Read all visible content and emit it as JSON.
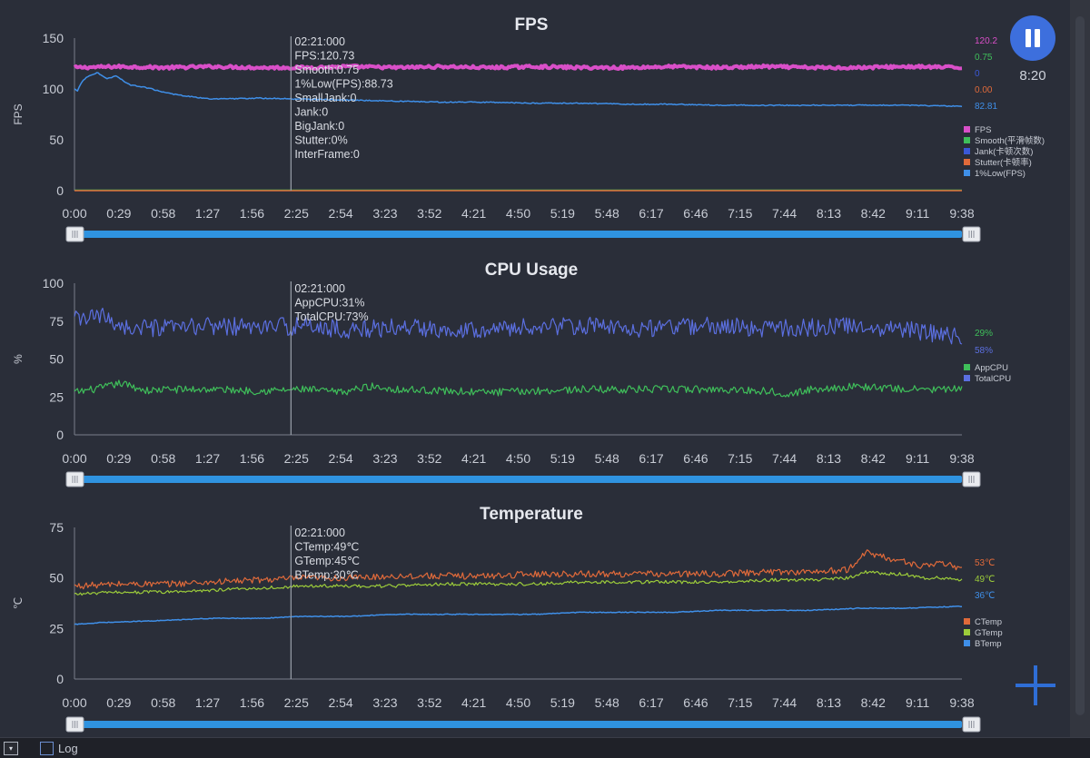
{
  "status": {
    "timer": "8:20",
    "log_label": "Log",
    "dropdown_glyph": "▾"
  },
  "icons": {
    "pause": "pause-icon",
    "add": "plus-icon"
  },
  "colors": {
    "background": "#2a2e39",
    "axis": "#7a7f8c",
    "cursor": "#9aa0ab",
    "slider": "#2f93e0",
    "pause": "#3d6fdd"
  },
  "chart_data": [
    {
      "type": "line",
      "title": "FPS",
      "ylabel": "FPS",
      "ylim": [
        0,
        150
      ],
      "yticks": [
        "0",
        "50",
        "100",
        "150"
      ],
      "x_ticks": [
        "0:00",
        "0:29",
        "0:58",
        "1:27",
        "1:56",
        "2:25",
        "2:54",
        "3:23",
        "3:52",
        "4:21",
        "4:50",
        "5:19",
        "5:48",
        "6:17",
        "6:46",
        "7:15",
        "7:44",
        "8:13",
        "8:42",
        "9:11",
        "9:38"
      ],
      "cursor_time": "2:21",
      "tooltip": [
        "02:21:000",
        "FPS:120.73",
        "Smooth:0.75",
        "1%Low(FPS):88.73",
        "SmallJank:0",
        "Jank:0",
        "BigJank:0",
        "Stutter:0%",
        "InterFrame:0"
      ],
      "series": [
        {
          "name": "FPS",
          "color": "#d94fc8",
          "width": 4,
          "x": [
            0,
            0.5,
            1,
            1.5,
            2,
            2.5,
            3,
            3.5,
            4,
            4.5,
            5,
            5.5,
            6,
            6.5,
            7,
            7.5,
            8,
            8.5,
            9,
            9.633
          ],
          "y": [
            121,
            122,
            121,
            122,
            121,
            121,
            122,
            121,
            122,
            121,
            122,
            121,
            121,
            122,
            121,
            122,
            121,
            121,
            122,
            121
          ],
          "noise": 1.4
        },
        {
          "name": "Smooth(平滑帧数)",
          "color": "#3fbf5a",
          "width": 1,
          "x": [
            0,
            9.633
          ],
          "y": [
            0.75,
            0.75
          ],
          "noise": 0
        },
        {
          "name": "Jank(卡顿次数)",
          "color": "#3a58d6",
          "width": 1,
          "x": [
            0,
            9.633
          ],
          "y": [
            0,
            0
          ],
          "noise": 0
        },
        {
          "name": "Stutter(卡顿率)",
          "color": "#e06a3a",
          "width": 1.5,
          "x": [
            0,
            9.633
          ],
          "y": [
            0,
            0
          ],
          "noise": 0
        },
        {
          "name": "1%Low(FPS)",
          "color": "#3f8fe8",
          "width": 1.5,
          "x": [
            0,
            0.03,
            0.08,
            0.15,
            0.25,
            0.35,
            0.45,
            0.6,
            0.8,
            1.0,
            1.2,
            1.5,
            2.0,
            2.5,
            3.0,
            3.5,
            4.0,
            4.5,
            5.0,
            5.5,
            6.0,
            6.5,
            7.0,
            7.5,
            8.0,
            8.5,
            9.0,
            9.633
          ],
          "y": [
            100,
            98,
            107,
            113,
            116,
            110,
            113,
            104,
            101,
            96,
            93,
            90,
            91,
            90,
            89,
            88,
            87,
            87,
            86,
            86,
            85,
            85,
            84,
            84,
            84,
            84,
            84,
            83
          ],
          "noise": 0.5
        }
      ],
      "legend_values": [
        {
          "text": "120.2",
          "color": "#d94fc8"
        },
        {
          "text": "0.75",
          "color": "#3fbf5a"
        },
        {
          "text": "0",
          "color": "#3a58d6"
        },
        {
          "text": "0.00",
          "color": "#e06a3a"
        },
        {
          "text": "82.81",
          "color": "#3f8fe8"
        }
      ],
      "legend": "right"
    },
    {
      "type": "line",
      "title": "CPU Usage",
      "ylabel": "%",
      "ylim": [
        0,
        100
      ],
      "yticks": [
        "0",
        "25",
        "50",
        "75",
        "100"
      ],
      "x_ticks": [
        "0:00",
        "0:29",
        "0:58",
        "1:27",
        "1:56",
        "2:25",
        "2:54",
        "3:23",
        "3:52",
        "4:21",
        "4:50",
        "5:19",
        "5:48",
        "6:17",
        "6:46",
        "7:15",
        "7:44",
        "8:13",
        "8:42",
        "9:11",
        "9:38"
      ],
      "cursor_time": "2:21",
      "tooltip": [
        "02:21:000",
        "AppCPU:31%",
        "TotalCPU:73%"
      ],
      "series": [
        {
          "name": "AppCPU",
          "color": "#3fbf5a",
          "width": 1.2,
          "x": [
            0,
            0.3,
            0.5,
            0.8,
            1.0,
            1.5,
            2.0,
            2.5,
            2.9,
            3.2,
            3.5,
            4.0,
            4.5,
            5.0,
            5.5,
            6.0,
            6.5,
            7.0,
            7.5,
            7.8,
            8.0,
            8.5,
            9.0,
            9.633
          ],
          "y": [
            28,
            31,
            34,
            29,
            30,
            30,
            29,
            30,
            28,
            32,
            30,
            29,
            28,
            29,
            30,
            30,
            30,
            30,
            29,
            27,
            30,
            32,
            30,
            30
          ],
          "noise": 2.5
        },
        {
          "name": "TotalCPU",
          "color": "#5b6fe0",
          "width": 1.2,
          "x": [
            0,
            0.3,
            0.6,
            1.0,
            1.5,
            2.0,
            2.5,
            3.0,
            3.5,
            4.0,
            4.5,
            5.0,
            5.5,
            6.0,
            6.5,
            7.0,
            7.5,
            8.0,
            8.5,
            9.0,
            9.633
          ],
          "y": [
            76,
            78,
            70,
            70,
            72,
            71,
            72,
            69,
            71,
            70,
            70,
            71,
            72,
            70,
            71,
            72,
            70,
            71,
            72,
            70,
            64
          ],
          "noise": 6
        }
      ],
      "legend_values": [
        {
          "text": "29%",
          "color": "#3fbf5a"
        },
        {
          "text": "58%",
          "color": "#5b6fe0"
        }
      ],
      "legend": "right"
    },
    {
      "type": "line",
      "title": "Temperature",
      "ylabel": "℃",
      "ylim": [
        0,
        75
      ],
      "yticks": [
        "0",
        "25",
        "50",
        "75"
      ],
      "x_ticks": [
        "0:00",
        "0:29",
        "0:58",
        "1:27",
        "1:56",
        "2:25",
        "2:54",
        "3:23",
        "3:52",
        "4:21",
        "4:50",
        "5:19",
        "5:48",
        "6:17",
        "6:46",
        "7:15",
        "7:44",
        "8:13",
        "8:42",
        "9:11",
        "9:38"
      ],
      "cursor_time": "2:21",
      "tooltip": [
        "02:21:000",
        "CTemp:49℃",
        "GTemp:45℃",
        "BTemp:30℃"
      ],
      "series": [
        {
          "name": "CTemp",
          "color": "#e06a3a",
          "width": 1.2,
          "x": [
            0,
            0.5,
            1.0,
            1.5,
            2.0,
            2.5,
            3.0,
            3.5,
            4.0,
            4.5,
            5.0,
            5.5,
            6.0,
            6.5,
            7.0,
            7.5,
            8.0,
            8.4,
            8.6,
            8.8,
            9.0,
            9.2,
            9.4,
            9.633
          ],
          "y": [
            46,
            47,
            47,
            48,
            49,
            50,
            50,
            51,
            51,
            51,
            52,
            52,
            52,
            52,
            52,
            53,
            53,
            54,
            63,
            60,
            58,
            56,
            57,
            55
          ],
          "noise": 1.6
        },
        {
          "name": "GTemp",
          "color": "#9ccc3a",
          "width": 1.2,
          "x": [
            0,
            0.5,
            1.0,
            1.5,
            2.0,
            2.5,
            3.0,
            3.5,
            4.0,
            4.5,
            5.0,
            5.5,
            6.0,
            6.5,
            7.0,
            7.5,
            8.0,
            8.4,
            8.6,
            8.8,
            9.0,
            9.2,
            9.4,
            9.633
          ],
          "y": [
            42,
            43,
            43,
            44,
            45,
            46,
            46,
            46,
            47,
            47,
            47,
            48,
            48,
            48,
            48,
            49,
            49,
            50,
            53,
            52,
            52,
            50,
            50,
            49
          ],
          "noise": 0.8
        },
        {
          "name": "BTemp",
          "color": "#3f8fe8",
          "width": 1.5,
          "x": [
            0,
            0.3,
            1.0,
            1.5,
            2.0,
            2.5,
            3.0,
            3.5,
            4.0,
            4.5,
            5.0,
            5.5,
            6.0,
            6.5,
            7.0,
            7.5,
            8.0,
            8.5,
            9.0,
            9.633
          ],
          "y": [
            27,
            28,
            29,
            30,
            30,
            31,
            31,
            32,
            32,
            32,
            32,
            33,
            33,
            33,
            34,
            34,
            34,
            35,
            35,
            36
          ],
          "noise": 0.2
        }
      ],
      "legend_values": [
        {
          "text": "53℃",
          "color": "#e06a3a"
        },
        {
          "text": "49℃",
          "color": "#9ccc3a"
        },
        {
          "text": "36℃",
          "color": "#3f8fe8"
        }
      ],
      "legend": "right"
    }
  ]
}
